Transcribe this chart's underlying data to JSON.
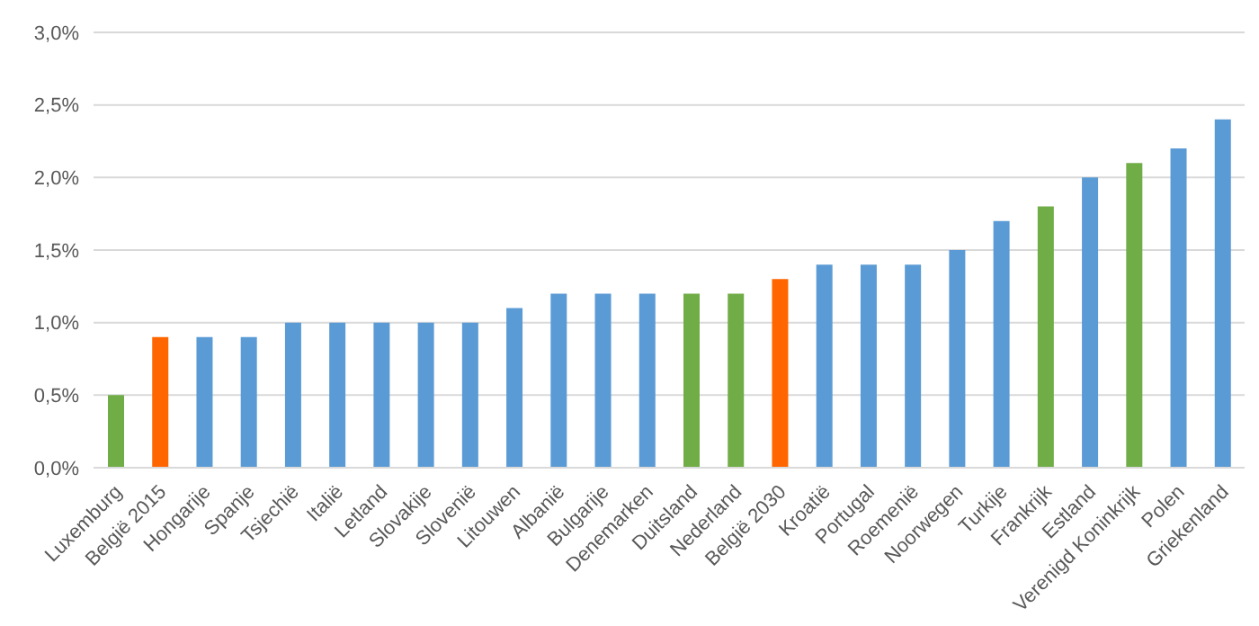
{
  "chart_data": {
    "type": "bar",
    "categories": [
      "Luxemburg",
      "België 2015",
      "Hongarije",
      "Spanje",
      "Tsjechië",
      "Italië",
      "Letland",
      "Slovakije",
      "Slovenië",
      "Litouwen",
      "Albanië",
      "Bulgarije",
      "Denemarken",
      "Duitsland",
      "Nederland",
      "België 2030",
      "Kroatië",
      "Portugal",
      "Roemenië",
      "Noorwegen",
      "Turkije",
      "Frankrijk",
      "Estland",
      "Verenigd Koninkrijk",
      "Polen",
      "Griekenland"
    ],
    "values": [
      0.5,
      0.9,
      0.9,
      0.9,
      1.0,
      1.0,
      1.0,
      1.0,
      1.0,
      1.1,
      1.2,
      1.2,
      1.2,
      1.2,
      1.2,
      1.3,
      1.4,
      1.4,
      1.4,
      1.5,
      1.7,
      1.8,
      2.0,
      2.1,
      2.2,
      2.4
    ],
    "colors": [
      "#70ad47",
      "#ff6600",
      "#5b9bd5",
      "#5b9bd5",
      "#5b9bd5",
      "#5b9bd5",
      "#5b9bd5",
      "#5b9bd5",
      "#5b9bd5",
      "#5b9bd5",
      "#5b9bd5",
      "#5b9bd5",
      "#5b9bd5",
      "#70ad47",
      "#70ad47",
      "#ff6600",
      "#5b9bd5",
      "#5b9bd5",
      "#5b9bd5",
      "#5b9bd5",
      "#5b9bd5",
      "#70ad47",
      "#5b9bd5",
      "#70ad47",
      "#5b9bd5",
      "#5b9bd5"
    ],
    "ylim": [
      0,
      3
    ],
    "yticks": [
      {
        "value": 0,
        "label": "0,0%"
      },
      {
        "value": 0.5,
        "label": "0,5%"
      },
      {
        "value": 1,
        "label": "1,0%"
      },
      {
        "value": 1.5,
        "label": "1,5%"
      },
      {
        "value": 2,
        "label": "2,0%"
      },
      {
        "value": 2.5,
        "label": "2,5%"
      },
      {
        "value": 3,
        "label": "3,0%"
      }
    ],
    "grid": "y"
  }
}
